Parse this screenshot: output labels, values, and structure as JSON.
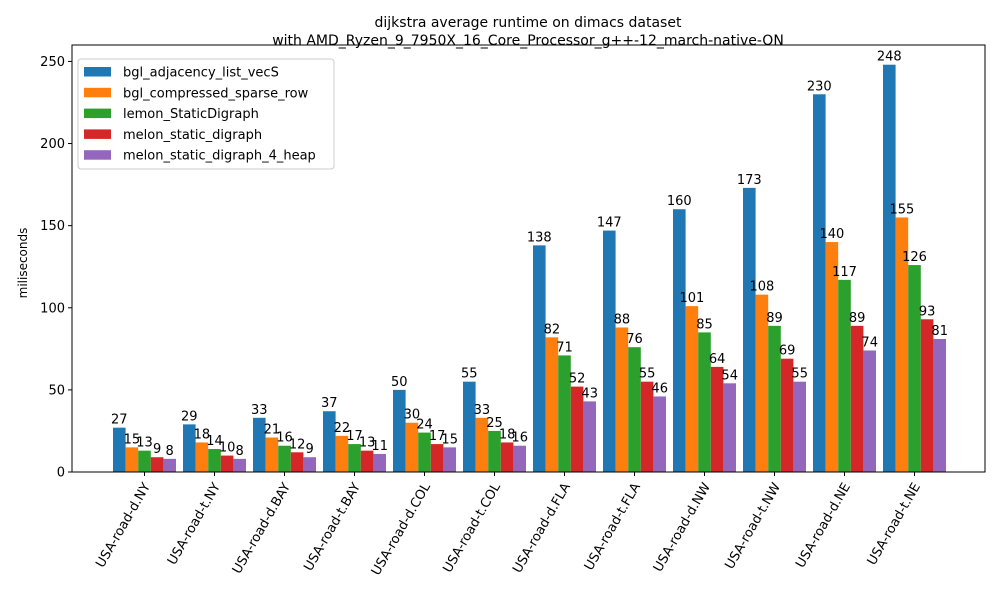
{
  "chart_data": {
    "type": "bar",
    "title": "dijkstra average runtime on dimacs dataset",
    "subtitle": "with AMD_Ryzen_9_7950X_16_Core_Processor_g++-12_march-native-ON",
    "xlabel": "",
    "ylabel": "miliseconds",
    "ylim": [
      0,
      260
    ],
    "yticks": [
      0,
      50,
      100,
      150,
      200,
      250
    ],
    "grid": false,
    "legend_position": "top-left",
    "categories": [
      "USA-road-d.NY",
      "USA-road-t.NY",
      "USA-road-d.BAY",
      "USA-road-t.BAY",
      "USA-road-d.COL",
      "USA-road-t.COL",
      "USA-road-d.FLA",
      "USA-road-t.FLA",
      "USA-road-d.NW",
      "USA-road-t.NW",
      "USA-road-d.NE",
      "USA-road-t.NE"
    ],
    "series": [
      {
        "name": "bgl_adjacency_list_vecS",
        "color": "#1f77b4",
        "values": [
          27,
          29,
          33,
          37,
          50,
          55,
          138,
          147,
          160,
          173,
          230,
          248
        ]
      },
      {
        "name": "bgl_compressed_sparse_row",
        "color": "#ff7f0e",
        "values": [
          15,
          18,
          21,
          22,
          30,
          33,
          82,
          88,
          101,
          108,
          140,
          155
        ]
      },
      {
        "name": "lemon_StaticDigraph",
        "color": "#2ca02c",
        "values": [
          13,
          14,
          16,
          17,
          24,
          25,
          71,
          76,
          85,
          89,
          117,
          126
        ]
      },
      {
        "name": "melon_static_digraph",
        "color": "#d62728",
        "values": [
          9,
          10,
          12,
          13,
          17,
          18,
          52,
          55,
          64,
          69,
          89,
          93
        ]
      },
      {
        "name": "melon_static_digraph_4_heap",
        "color": "#9467bd",
        "values": [
          8,
          8,
          9,
          11,
          15,
          16,
          43,
          46,
          54,
          55,
          74,
          81
        ]
      }
    ]
  }
}
